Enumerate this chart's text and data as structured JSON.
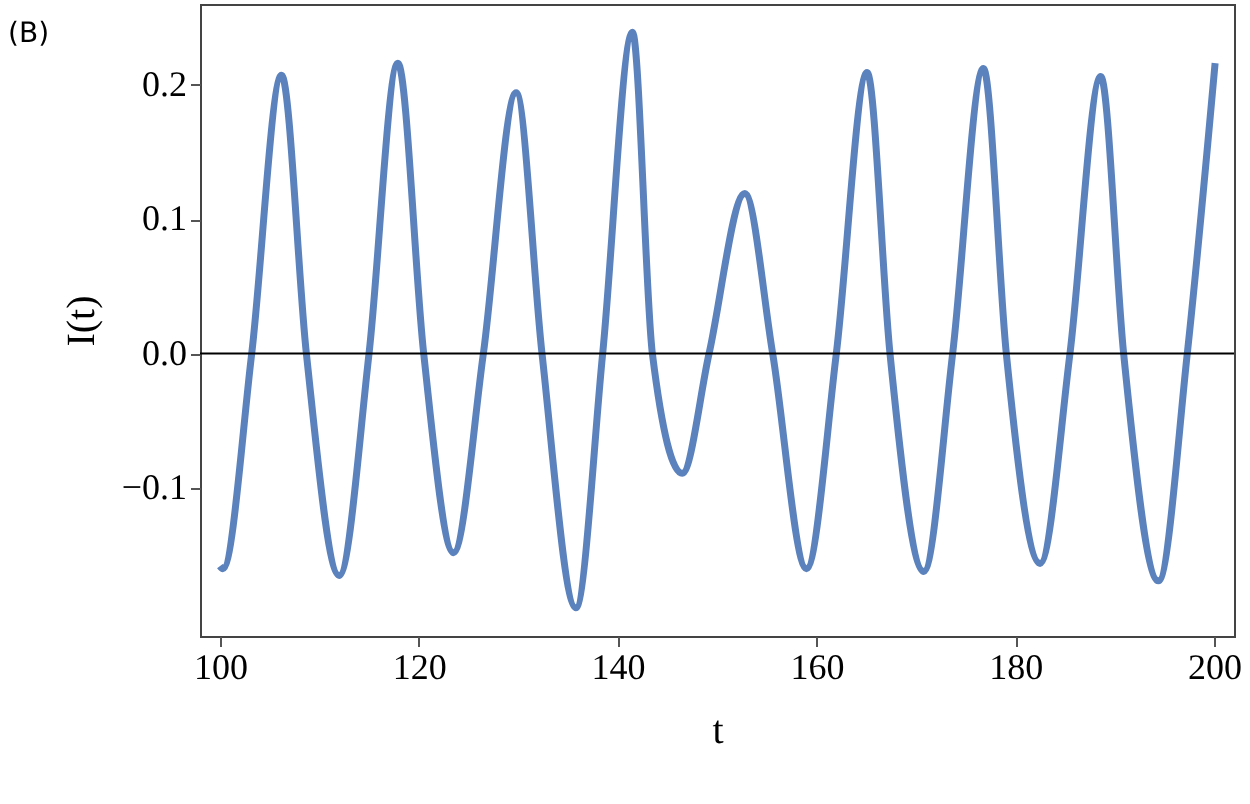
{
  "chart_data": {
    "type": "line",
    "xlabel": "t",
    "ylabel": "I(t)",
    "annotations": [
      "(B)"
    ],
    "x": [
      100,
      100.3,
      103.2,
      106.2,
      108.7,
      112.0,
      115.0,
      117.9,
      120.5,
      123.5,
      126.5,
      129.8,
      132.4,
      135.8,
      138.5,
      141.5,
      143.5,
      146.5,
      149.2,
      152.8,
      155.6,
      159.0,
      162.0,
      165.1,
      167.4,
      170.8,
      173.7,
      176.8,
      179.1,
      182.5,
      185.5,
      188.6,
      190.9,
      194.4,
      197.3,
      200.1
    ],
    "series": [
      {
        "color": "#5b82bd",
        "values": [
          -0.158,
          -0.16,
          0,
          0.207,
          0,
          -0.165,
          0,
          0.216,
          0,
          -0.148,
          0,
          0.194,
          0,
          -0.189,
          0,
          0.239,
          0,
          -0.089,
          0,
          0.119,
          0,
          -0.16,
          0,
          0.209,
          0,
          -0.162,
          0,
          0.212,
          0,
          -0.156,
          0,
          0.206,
          0,
          -0.169,
          0,
          0.216
        ]
      }
    ],
    "xlim": [
      98,
      202
    ],
    "ylim": [
      -0.21,
      0.26
    ],
    "xticks": [
      100,
      120,
      140,
      160,
      180,
      200
    ],
    "yticks": [
      {
        "value": -0.1,
        "label": "−0.1"
      },
      {
        "value": 0,
        "label": "0.0"
      },
      0.1,
      0.2
    ],
    "ref_lines": [
      {
        "axis": "y",
        "value": 0,
        "color": "#000000"
      }
    ],
    "grid": false,
    "marker": "none",
    "line_style": "solid"
  }
}
